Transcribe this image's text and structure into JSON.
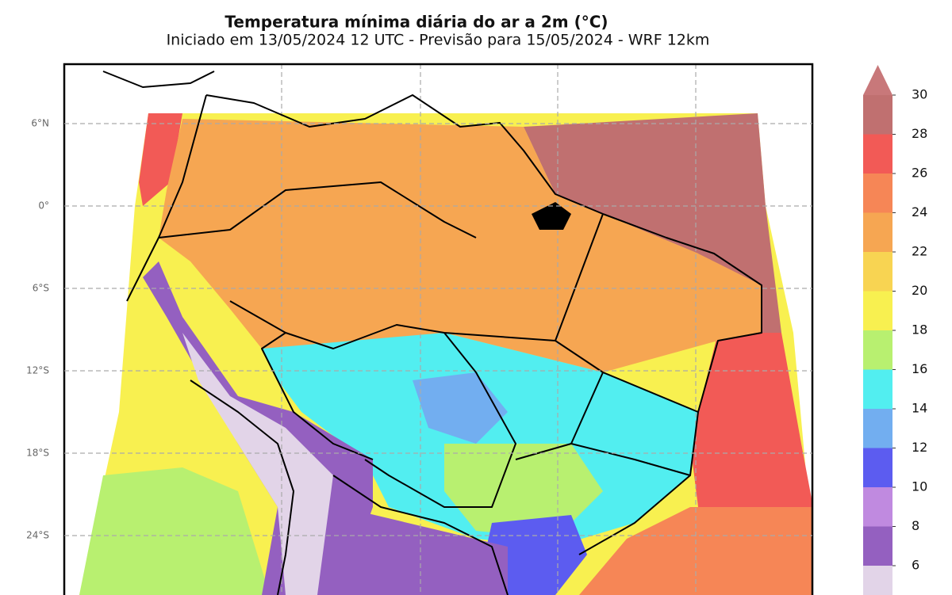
{
  "title": "Temperatura mínima diária do ar a 2m (°C)",
  "subtitle": "Iniciado em 13/05/2024 12 UTC - Previsão para 15/05/2024 - WRF 12km",
  "latitude_labels": [
    "6°N",
    "0°",
    "6°S",
    "12°S",
    "18°S",
    "24°S"
  ],
  "colorbar": {
    "ticks": [
      6,
      8,
      10,
      12,
      14,
      16,
      18,
      20,
      22,
      24,
      26,
      28,
      30
    ],
    "colors": [
      "#9460c0",
      "#c08ae0",
      "#5c5cf0",
      "#72aef0",
      "#52eef0",
      "#b8f070",
      "#f8f050",
      "#f8d452",
      "#f6a652",
      "#f68656",
      "#f25a56",
      "#c07070"
    ],
    "under_color": "#e2d4e8",
    "over_color": "#c8787a"
  }
}
